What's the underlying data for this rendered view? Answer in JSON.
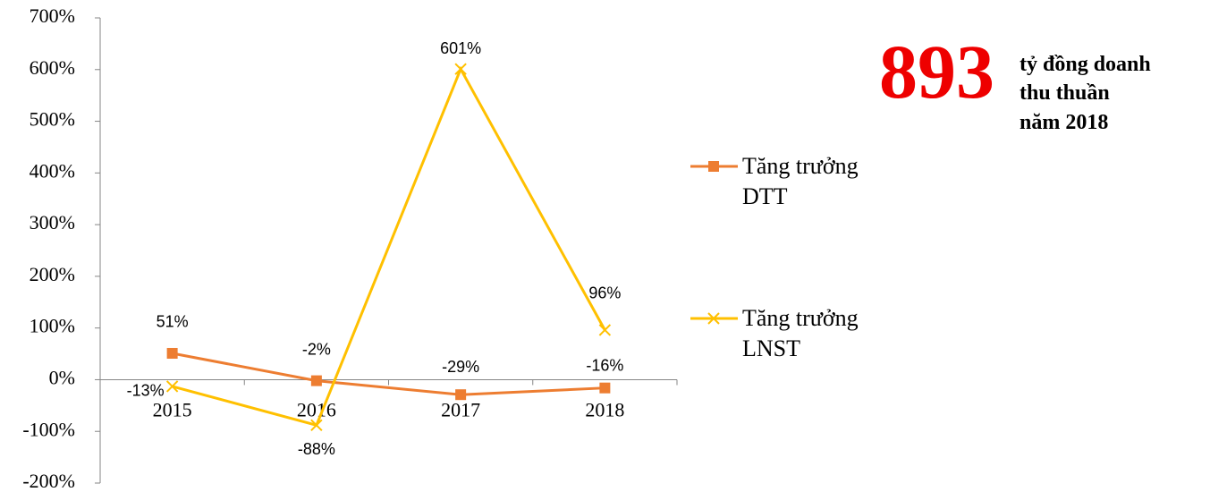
{
  "chart_data": {
    "type": "line",
    "categories": [
      "2015",
      "2016",
      "2017",
      "2018"
    ],
    "series": [
      {
        "name": "Tăng trưởng DTT",
        "color": "#ED7D31",
        "marker": "square",
        "values": [
          51,
          -2,
          -29,
          -16
        ],
        "value_labels": [
          "51%",
          "-2%",
          "-29%",
          "-16%"
        ]
      },
      {
        "name": "Tăng trưởng LNST",
        "color": "#FFC000",
        "marker": "x",
        "values": [
          -13,
          -88,
          601,
          96
        ],
        "value_labels": [
          "-13%",
          "-88%",
          "601%",
          "96%"
        ]
      }
    ],
    "ylim": [
      -200,
      700
    ],
    "yticks": [
      {
        "value": -200,
        "label": "-200%"
      },
      {
        "value": -100,
        "label": "-100%"
      },
      {
        "value": 0,
        "label": "0%"
      },
      {
        "value": 100,
        "label": "100%"
      },
      {
        "value": 200,
        "label": "200%"
      },
      {
        "value": 300,
        "label": "300%"
      },
      {
        "value": 400,
        "label": "400%"
      },
      {
        "value": 500,
        "label": "500%"
      },
      {
        "value": 600,
        "label": "600%"
      },
      {
        "value": 700,
        "label": "700%"
      }
    ],
    "grid": false,
    "legend": "right",
    "annotation": {
      "number": "893",
      "text": [
        "tỷ đồng doanh",
        "thu thuần",
        "năm 2018"
      ]
    }
  }
}
